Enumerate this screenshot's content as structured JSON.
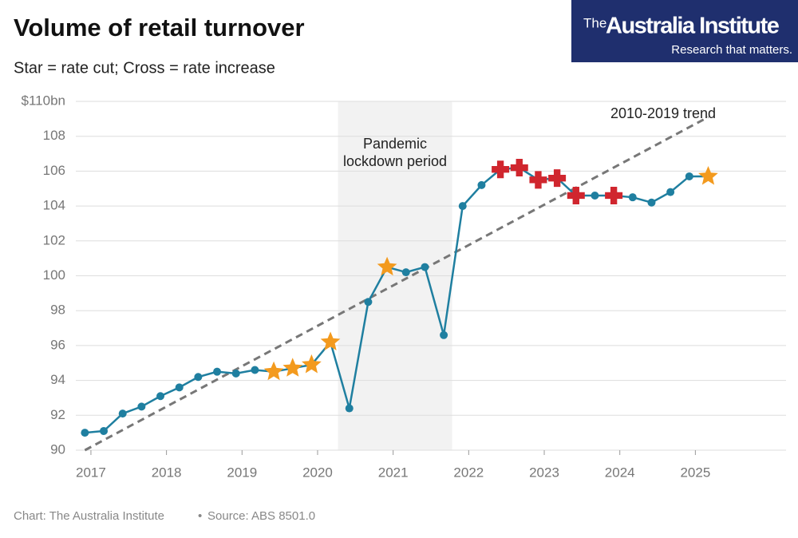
{
  "chart_data": {
    "type": "line",
    "title": "Volume of retail turnover",
    "subtitle": "Star = rate cut; Cross = rate increase",
    "ylim": [
      90,
      110
    ],
    "yticks": [
      90,
      92,
      94,
      96,
      98,
      100,
      102,
      104,
      106,
      108,
      {
        "value": 110,
        "label": "$110bn"
      }
    ],
    "xlim": [
      2016.8,
      2026.2
    ],
    "xticks": [
      2017,
      2018,
      2019,
      2020,
      2021,
      2022,
      2023,
      2024,
      2025
    ],
    "grid": true,
    "shaded": {
      "x": [
        2020.27,
        2021.78
      ],
      "label": [
        "Pandemic",
        "lockdown period"
      ],
      "color": "#f2f2f2"
    },
    "series": [
      {
        "color": "#1f7fa0",
        "x": [
          2016.92,
          2017.17,
          2017.42,
          2017.67,
          2017.92,
          2018.17,
          2018.42,
          2018.67,
          2018.92,
          2019.17,
          2019.42,
          2019.67,
          2019.92,
          2020.17,
          2020.42,
          2020.67,
          2020.92,
          2021.17,
          2021.42,
          2021.67,
          2021.92,
          2022.17,
          2022.42,
          2022.67,
          2022.92,
          2023.17,
          2023.42,
          2023.67,
          2023.92,
          2024.17,
          2024.42,
          2024.67,
          2024.92,
          2025.17
        ],
        "values": [
          91.0,
          91.1,
          92.1,
          92.5,
          93.1,
          93.6,
          94.2,
          94.5,
          94.4,
          94.6,
          94.5,
          94.7,
          94.9,
          96.2,
          92.4,
          98.5,
          100.5,
          100.2,
          100.5,
          96.6,
          104.0,
          105.2,
          106.1,
          106.2,
          105.5,
          105.6,
          104.6,
          104.6,
          104.6,
          104.5,
          104.2,
          104.8,
          105.7,
          105.7
        ],
        "markers": [
          null,
          null,
          null,
          null,
          null,
          null,
          null,
          null,
          null,
          null,
          "star",
          "star",
          "star",
          "star",
          null,
          null,
          "star",
          null,
          null,
          null,
          null,
          null,
          "cross",
          "cross",
          "cross",
          "cross",
          "cross",
          null,
          "cross",
          null,
          null,
          null,
          null,
          "star"
        ],
        "marker_colors": {
          "star": "#f39a1e",
          "cross": "#d0262e"
        }
      },
      {
        "name": "2010-2019 trend",
        "color": "#777777",
        "dashed": true,
        "x": [
          2016.92,
          2025.17
        ],
        "values": [
          90.0,
          109.1
        ]
      }
    ]
  },
  "logo": {
    "prefix": "The",
    "name": "Australia Institute",
    "tagline": "Research that matters."
  },
  "footer": {
    "credit": "Chart: The Australia Institute",
    "source": "Source: ABS 8501.0"
  }
}
